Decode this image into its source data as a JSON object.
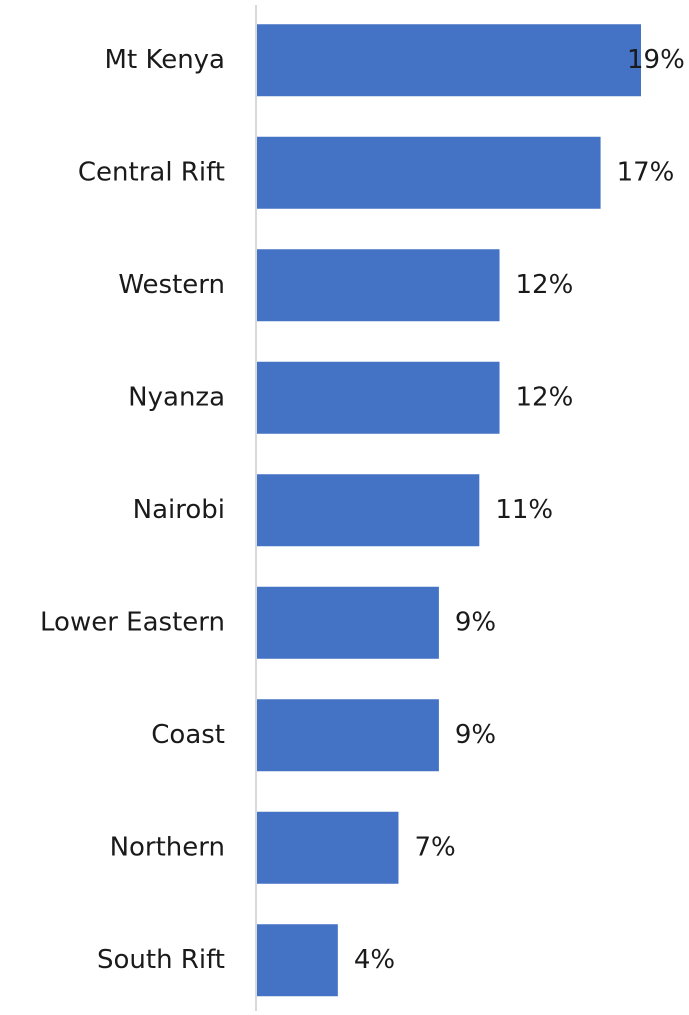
{
  "chart_data": {
    "type": "bar",
    "orientation": "horizontal",
    "categories": [
      "Mt Kenya",
      "Central Rift",
      "Western",
      "Nyanza",
      "Nairobi",
      "Lower Eastern",
      "Coast",
      "Northern",
      "South Rift"
    ],
    "values": [
      19,
      17,
      12,
      12,
      11,
      9,
      9,
      7,
      4
    ],
    "value_labels": [
      "19%",
      "17%",
      "12%",
      "12%",
      "11%",
      "9%",
      "9%",
      "7%",
      "4%"
    ],
    "color": "#4472c4"
  }
}
